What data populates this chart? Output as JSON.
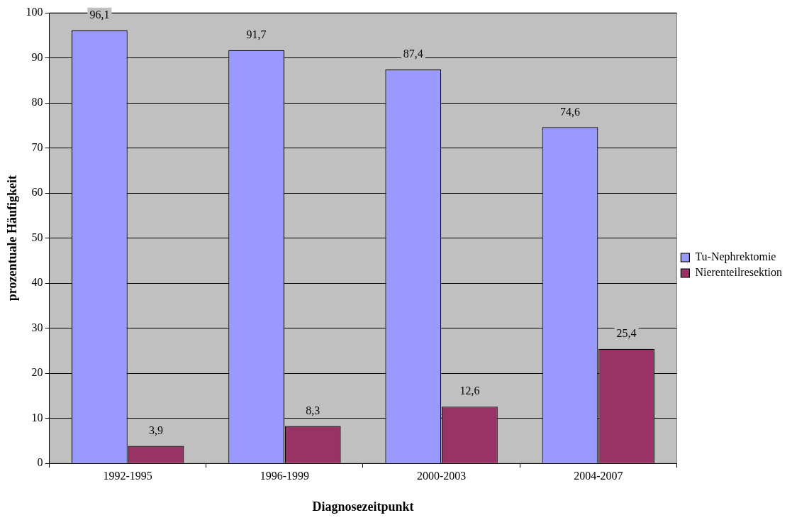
{
  "chart_data": {
    "type": "bar",
    "xlabel": "Diagnosezeitpunkt",
    "ylabel": "prozentuale Häufigkeit",
    "categories": [
      "1992-1995",
      "1996-1999",
      "2000-2003",
      "2004-2007"
    ],
    "series": [
      {
        "name": "Tu-Nephrektomie",
        "color": "#9999ff",
        "values": [
          96.1,
          91.7,
          87.4,
          74.6
        ],
        "value_labels": [
          "96,1",
          "91,7",
          "87,4",
          "74,6"
        ]
      },
      {
        "name": "Nierenteilresektion",
        "color": "#993366",
        "values": [
          3.9,
          8.3,
          12.6,
          25.4
        ],
        "value_labels": [
          "3,9",
          "8,3",
          "12,6",
          "25,4"
        ]
      }
    ],
    "ylim": [
      0,
      100
    ],
    "yticks": [
      0,
      10,
      20,
      30,
      40,
      50,
      60,
      70,
      80,
      90,
      100
    ],
    "grid": "y",
    "legend": "right"
  }
}
